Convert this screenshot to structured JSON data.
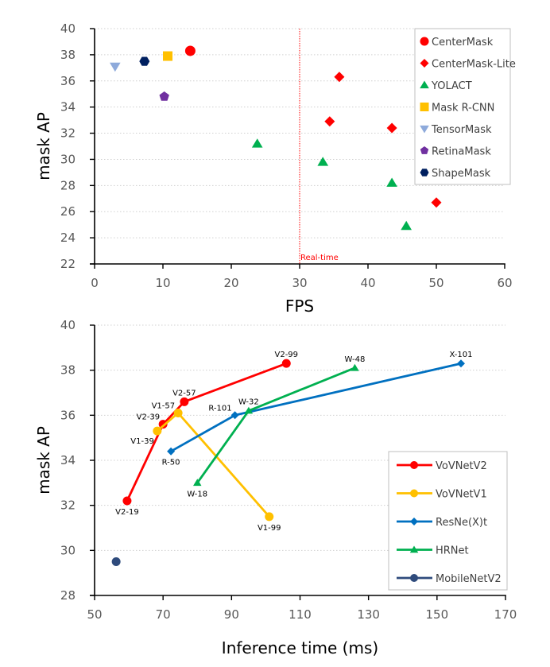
{
  "chart_data": [
    {
      "type": "scatter",
      "title": "",
      "xlabel": "FPS",
      "ylabel": "mask AP",
      "xlim": [
        0,
        60
      ],
      "ylim": [
        22,
        40
      ],
      "xticks": [
        0,
        10,
        20,
        30,
        40,
        50,
        60
      ],
      "yticks": [
        22,
        24,
        26,
        28,
        30,
        32,
        34,
        36,
        38,
        40
      ],
      "grid": "horizontal-dotted",
      "legend_position": "top-right",
      "annotation": {
        "x": 30,
        "text": "Real-time",
        "color": "#ff0000",
        "style": "vertical-dotted-line"
      },
      "series": [
        {
          "name": "CenterMask",
          "marker": "circle",
          "color": "#ff0000",
          "points": [
            [
              14.0,
              38.3
            ]
          ]
        },
        {
          "name": "CenterMask-Lite",
          "marker": "diamond",
          "color": "#ff0000",
          "points": [
            [
              35.8,
              36.3
            ],
            [
              34.4,
              32.9
            ],
            [
              43.5,
              32.4
            ],
            [
              50.0,
              26.7
            ]
          ]
        },
        {
          "name": "YOLACT",
          "marker": "triangle-up",
          "color": "#00b050",
          "points": [
            [
              23.8,
              31.2
            ],
            [
              33.4,
              29.8
            ],
            [
              43.5,
              28.2
            ],
            [
              45.6,
              24.9
            ]
          ]
        },
        {
          "name": "Mask R-CNN",
          "marker": "square",
          "color": "#ffc000",
          "points": [
            [
              10.7,
              37.9
            ]
          ]
        },
        {
          "name": "TensorMask",
          "marker": "triangle-down",
          "color": "#8eaadb",
          "points": [
            [
              3.0,
              37.1
            ]
          ]
        },
        {
          "name": "RetinaMask",
          "marker": "pentagon",
          "color": "#7030a0",
          "points": [
            [
              10.2,
              34.8
            ]
          ]
        },
        {
          "name": "ShapeMask",
          "marker": "hexagon",
          "color": "#002060",
          "points": [
            [
              7.3,
              37.5
            ]
          ]
        }
      ]
    },
    {
      "type": "line",
      "title": "",
      "xlabel": "Inference time (ms)",
      "ylabel": "mask AP",
      "xlim": [
        50,
        170
      ],
      "ylim": [
        28,
        40
      ],
      "xticks": [
        50,
        70,
        90,
        110,
        130,
        150,
        170
      ],
      "yticks": [
        28,
        30,
        32,
        34,
        36,
        38,
        40
      ],
      "grid": "horizontal-dotted",
      "legend_position": "bottom-right",
      "series": [
        {
          "name": "VoVNetV2",
          "marker": "circle",
          "color": "#ff0000",
          "points": [
            {
              "x": 59.5,
              "y": 32.2,
              "label": "V2-19",
              "lpos": "below"
            },
            {
              "x": 70.0,
              "y": 35.6,
              "label": "V2-39",
              "lpos": "upleft"
            },
            {
              "x": 76.2,
              "y": 36.6,
              "label": "V2-57",
              "lpos": "above"
            },
            {
              "x": 106.0,
              "y": 38.3,
              "label": "V2-99",
              "lpos": "above"
            }
          ]
        },
        {
          "name": "VoVNetV1",
          "marker": "circle",
          "color": "#ffc000",
          "points": [
            {
              "x": 68.3,
              "y": 35.3,
              "label": "V1-39",
              "lpos": "downleft"
            },
            {
              "x": 74.4,
              "y": 36.1,
              "label": "V1-57",
              "lpos": "upleft"
            },
            {
              "x": 101.0,
              "y": 31.5,
              "label": "V1-99",
              "lpos": "below"
            }
          ]
        },
        {
          "name": "ResNe(X)t",
          "marker": "diamond",
          "color": "#0070c0",
          "points": [
            {
              "x": 72.3,
              "y": 34.4,
              "label": "R-50",
              "lpos": "below"
            },
            {
              "x": 91.0,
              "y": 36.0,
              "label": "R-101",
              "lpos": "upleft"
            },
            {
              "x": 157.0,
              "y": 38.3,
              "label": "X-101",
              "lpos": "above"
            }
          ]
        },
        {
          "name": "HRNet",
          "marker": "triangle-up",
          "color": "#00b050",
          "points": [
            {
              "x": 80.0,
              "y": 33.0,
              "label": "W-18",
              "lpos": "below"
            },
            {
              "x": 95.0,
              "y": 36.2,
              "label": "W-32",
              "lpos": "above"
            },
            {
              "x": 126.0,
              "y": 38.1,
              "label": "W-48",
              "lpos": "above"
            }
          ]
        },
        {
          "name": "MobileNetV2",
          "marker": "circle",
          "color": "#2f4b7c",
          "points": [
            {
              "x": 56.3,
              "y": 29.5,
              "label": "",
              "lpos": "none"
            }
          ]
        }
      ]
    }
  ]
}
